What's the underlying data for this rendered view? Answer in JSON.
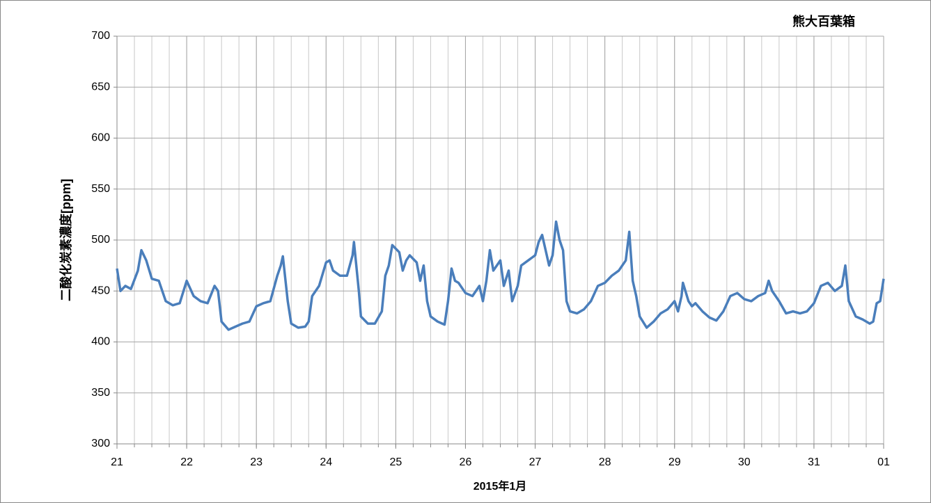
{
  "chart_data": {
    "type": "line",
    "title": "熊大百葉箱",
    "x_label": "2015年1月",
    "y_label": "二酸化炭素濃度[ppm]",
    "xlim": [
      21,
      32
    ],
    "xticks": [
      21,
      22,
      23,
      24,
      25,
      26,
      27,
      28,
      29,
      30,
      31,
      {
        "value": 32,
        "label": "01"
      }
    ],
    "xminor_step": 0.25,
    "ylim": [
      300,
      700
    ],
    "yticks": [
      300,
      350,
      400,
      450,
      500,
      550,
      600,
      650,
      700
    ],
    "grid": true,
    "series": [
      {
        "name": "CO2",
        "color": "#4a7ebb",
        "x": [
          21.0,
          21.05,
          21.12,
          21.2,
          21.3,
          21.35,
          21.42,
          21.5,
          21.6,
          21.7,
          21.8,
          21.9,
          22.0,
          22.1,
          22.2,
          22.3,
          22.4,
          22.45,
          22.5,
          22.6,
          22.7,
          22.8,
          22.9,
          23.0,
          23.1,
          23.2,
          23.3,
          23.35,
          23.38,
          23.45,
          23.5,
          23.6,
          23.7,
          23.75,
          23.8,
          23.9,
          24.0,
          24.05,
          24.1,
          24.2,
          24.3,
          24.38,
          24.4,
          24.47,
          24.5,
          24.6,
          24.7,
          24.8,
          24.85,
          24.9,
          24.95,
          25.05,
          25.1,
          25.15,
          25.2,
          25.3,
          25.35,
          25.4,
          25.45,
          25.5,
          25.6,
          25.7,
          25.75,
          25.8,
          25.85,
          25.9,
          26.0,
          26.1,
          26.2,
          26.25,
          26.3,
          26.35,
          26.4,
          26.5,
          26.55,
          26.62,
          26.67,
          26.75,
          26.8,
          26.9,
          27.0,
          27.05,
          27.1,
          27.15,
          27.2,
          27.25,
          27.3,
          27.35,
          27.4,
          27.45,
          27.5,
          27.6,
          27.7,
          27.8,
          27.9,
          28.0,
          28.1,
          28.2,
          28.3,
          28.35,
          28.4,
          28.45,
          28.5,
          28.6,
          28.7,
          28.8,
          28.9,
          29.0,
          29.05,
          29.1,
          29.12,
          29.2,
          29.25,
          29.3,
          29.4,
          29.5,
          29.6,
          29.7,
          29.8,
          29.9,
          30.0,
          30.1,
          30.2,
          30.3,
          30.35,
          30.4,
          30.5,
          30.6,
          30.7,
          30.8,
          30.9,
          31.0,
          31.1,
          31.2,
          31.3,
          31.4,
          31.45,
          31.5,
          31.6,
          31.7,
          31.8,
          31.85,
          31.9,
          31.95,
          32.0
        ],
        "values": [
          472,
          450,
          455,
          452,
          470,
          490,
          480,
          462,
          460,
          440,
          436,
          438,
          460,
          445,
          440,
          438,
          455,
          450,
          420,
          412,
          415,
          418,
          420,
          435,
          438,
          440,
          465,
          475,
          484,
          440,
          418,
          414,
          415,
          420,
          445,
          455,
          478,
          480,
          470,
          465,
          465,
          485,
          498,
          450,
          425,
          418,
          418,
          430,
          465,
          475,
          495,
          488,
          470,
          480,
          485,
          478,
          460,
          475,
          440,
          425,
          420,
          417,
          440,
          472,
          460,
          458,
          448,
          445,
          455,
          440,
          460,
          490,
          470,
          480,
          455,
          470,
          440,
          455,
          475,
          480,
          485,
          498,
          505,
          490,
          475,
          485,
          518,
          500,
          490,
          440,
          430,
          428,
          432,
          440,
          455,
          458,
          465,
          470,
          480,
          508,
          460,
          445,
          425,
          414,
          420,
          428,
          432,
          440,
          430,
          445,
          458,
          440,
          435,
          438,
          430,
          424,
          421,
          430,
          445,
          448,
          442,
          440,
          445,
          448,
          460,
          450,
          440,
          428,
          430,
          428,
          430,
          438,
          455,
          458,
          450,
          455,
          475,
          440,
          425,
          422,
          418,
          420,
          438,
          440,
          462
        ]
      }
    ]
  }
}
